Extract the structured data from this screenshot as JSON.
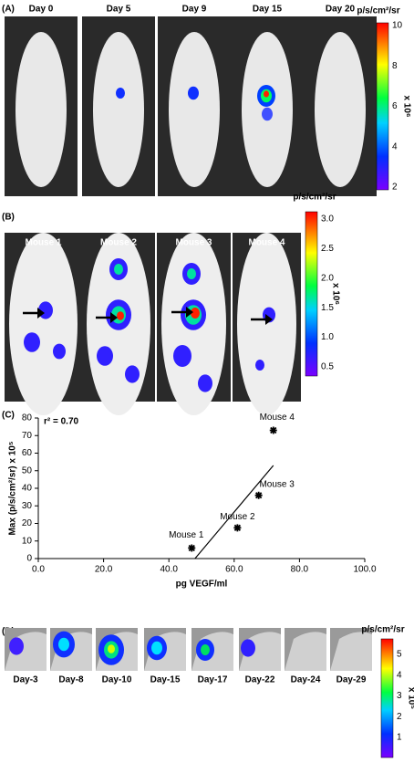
{
  "panel_a": {
    "label": "(A)",
    "images": [
      "Day 0",
      "Day 5",
      "Day 9",
      "Day 15",
      "Day 20"
    ],
    "colorbar": {
      "title": "p/s/cm²/sr",
      "scale": "x 10⁶",
      "ticks": [
        "10",
        "8",
        "6",
        "4",
        "2"
      ]
    }
  },
  "panel_b": {
    "label": "(B)",
    "images": [
      "Mouse 1",
      "Mouse 2",
      "Mouse 3",
      "Mouse 4"
    ],
    "colorbar": {
      "title": "p/s/cm²/sr",
      "scale": "x 10⁶",
      "ticks": [
        "3.0",
        "2.5",
        "2.0",
        "1.5",
        "1.0",
        "0.5"
      ]
    }
  },
  "chart_data": {
    "type": "scatter",
    "panel_label": "(C)",
    "annotation": "r² = 0.70",
    "xlabel": "pg VEGF/ml",
    "ylabel": "Max (p/s/cm²/sr) x 10⁵",
    "x": [
      47,
      61,
      67.5,
      72
    ],
    "values": [
      6,
      17.5,
      36,
      73
    ],
    "errors": [
      2,
      1.5,
      1.5,
      1.5
    ],
    "point_labels": [
      "Mouse 1",
      "Mouse 2",
      "Mouse 3",
      "Mouse 4"
    ],
    "color": "#000000",
    "fit_line": {
      "x": [
        48,
        72
      ],
      "values": [
        0,
        53
      ]
    },
    "xlim": [
      0,
      100
    ],
    "ylim": [
      0,
      80
    ],
    "xticks": [
      {
        "value": 0,
        "label": "0.0"
      },
      {
        "value": 20,
        "label": "20.0"
      },
      {
        "value": 40,
        "label": "40.0"
      },
      {
        "value": 60,
        "label": "60.0"
      },
      {
        "value": 80,
        "label": "80.0"
      },
      {
        "value": 100,
        "label": "100.0"
      }
    ],
    "yticks": [
      0,
      10,
      20,
      30,
      40,
      50,
      60,
      70,
      80
    ]
  },
  "panel_d": {
    "label": "(D)",
    "images": [
      "Day-3",
      "Day-8",
      "Day-10",
      "Day-15",
      "Day-17",
      "Day-22",
      "Day-24",
      "Day-29"
    ],
    "colorbar": {
      "title": "p/s/cm²/sr",
      "scale": "x 10⁵",
      "ticks": [
        "5",
        "4",
        "3",
        "2",
        "1"
      ]
    }
  }
}
